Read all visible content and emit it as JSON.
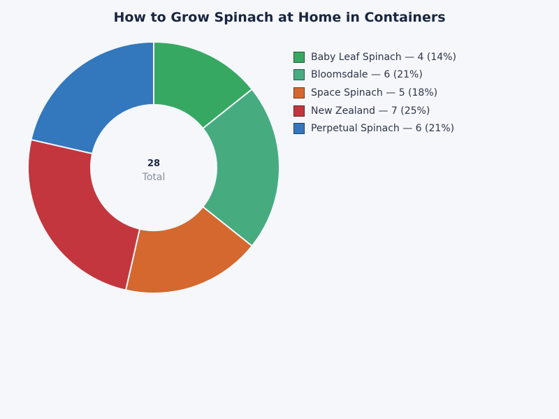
{
  "title": "How to Grow Spinach at Home in Containers",
  "center": {
    "value": "28",
    "label": "Total"
  },
  "legend": [
    {
      "label": "Baby Leaf Spinach — 4 (14%)",
      "color": "#37a862"
    },
    {
      "label": "Bloomsdale — 6 (21%)",
      "color": "#47ab80"
    },
    {
      "label": "Space Spinach — 5 (18%)",
      "color": "#d4682f"
    },
    {
      "label": "New Zealand — 7 (25%)",
      "color": "#c3363e"
    },
    {
      "label": "Perpetual Spinach — 6 (21%)",
      "color": "#3377bd"
    }
  ],
  "chart_data": {
    "type": "pie",
    "variant": "donut",
    "title": "How to Grow Spinach at Home in Containers",
    "categories": [
      "Baby Leaf Spinach",
      "Bloomsdale",
      "Space Spinach",
      "New Zealand",
      "Perpetual Spinach"
    ],
    "values": [
      4,
      6,
      5,
      7,
      6
    ],
    "percentages": [
      14,
      21,
      18,
      25,
      21
    ],
    "colors": [
      "#37a862",
      "#47ab80",
      "#d4682f",
      "#c3363e",
      "#3377bd"
    ],
    "total": 28,
    "center_label": "Total",
    "legend_position": "right",
    "start_angle": "top",
    "direction": "clockwise"
  }
}
